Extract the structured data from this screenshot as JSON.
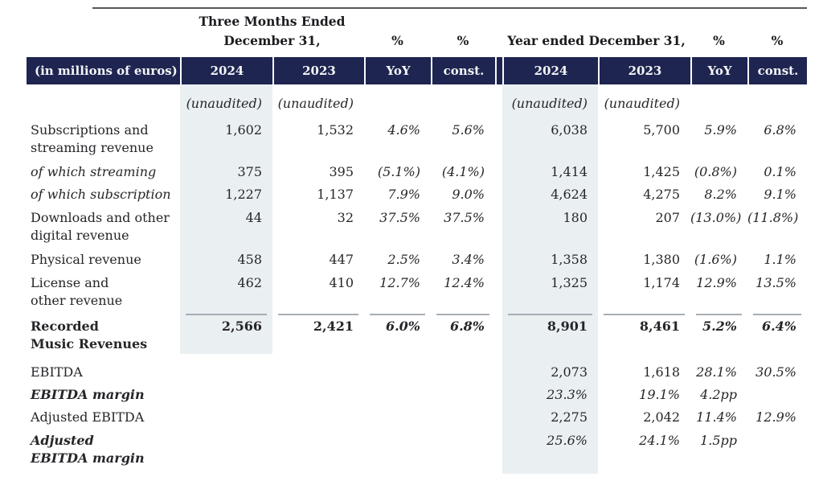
{
  "header": {
    "three_months_line1": "Three Months Ended",
    "three_months_line2": "December 31,",
    "year_ended": "Year ended December 31,",
    "pct_symbol": "%"
  },
  "unit_label": "(in millions of euros)",
  "columns": [
    "2024",
    "2023",
    "YoY",
    "const.",
    "2024",
    "2023",
    "YoY",
    "const."
  ],
  "colors": {
    "header_bg": "#1e2550",
    "column_shade": "#eaeff2",
    "total_rule": "#a6adb5",
    "top_rule": "#56585e",
    "text": "#26262a"
  },
  "rows": [
    {
      "kind": "unaud",
      "label_lines": [],
      "label_style": "normal",
      "force_italic": true,
      "values": [
        "(unaudited)",
        "(unaudited)",
        "",
        "",
        "(unaudited)",
        "(unaudited)",
        "",
        ""
      ]
    },
    {
      "kind": "two",
      "label_lines": [
        "Subscriptions and",
        "streaming revenue"
      ],
      "label_style": "normal",
      "values": [
        "1,602",
        "1,532",
        "4.6%",
        "5.6%",
        "6,038",
        "5,700",
        "5.9%",
        "6.8%"
      ]
    },
    {
      "kind": "one",
      "label_lines": [
        "of which streaming"
      ],
      "label_style": "italic",
      "values": [
        "375",
        "395",
        "(5.1%)",
        "(4.1%)",
        "1,414",
        "1,425",
        "(0.8%)",
        "0.1%"
      ]
    },
    {
      "kind": "one",
      "label_lines": [
        "of which subscription"
      ],
      "label_style": "italic",
      "values": [
        "1,227",
        "1,137",
        "7.9%",
        "9.0%",
        "4,624",
        "4,275",
        "8.2%",
        "9.1%"
      ]
    },
    {
      "kind": "two",
      "label_lines": [
        "Downloads and other",
        "digital revenue"
      ],
      "label_style": "normal",
      "values": [
        "44",
        "32",
        "37.5%",
        "37.5%",
        "180",
        "207",
        "(13.0%)",
        "(11.8%)"
      ]
    },
    {
      "kind": "one",
      "label_lines": [
        "Physical revenue"
      ],
      "label_style": "normal",
      "values": [
        "458",
        "447",
        "2.5%",
        "3.4%",
        "1,358",
        "1,380",
        "(1.6%)",
        "1.1%"
      ]
    },
    {
      "kind": "two",
      "label_lines": [
        "License and",
        "other revenue"
      ],
      "label_style": "normal",
      "values": [
        "462",
        "410",
        "12.7%",
        "12.4%",
        "1,325",
        "1,174",
        "12.9%",
        "13.5%"
      ]
    },
    {
      "kind": "total",
      "label_lines": [
        "Recorded",
        "Music Revenues"
      ],
      "label_style": "bold",
      "values": [
        "2,566",
        "2,421",
        "6.0%",
        "6.8%",
        "8,901",
        "8,461",
        "5.2%",
        "6.4%"
      ]
    },
    {
      "kind": "one",
      "label_lines": [
        "EBITDA"
      ],
      "label_style": "normal",
      "values": [
        "",
        "",
        "",
        "",
        "2,073",
        "1,618",
        "28.1%",
        "30.5%"
      ]
    },
    {
      "kind": "one",
      "label_lines": [
        "EBITDA margin"
      ],
      "label_style": "bold-italic",
      "values": [
        "",
        "",
        "",
        "",
        "23.3%",
        "19.1%",
        "4.2pp",
        ""
      ]
    },
    {
      "kind": "one",
      "label_lines": [
        "Adjusted EBITDA"
      ],
      "label_style": "normal",
      "values": [
        "",
        "",
        "",
        "",
        "2,275",
        "2,042",
        "11.4%",
        "12.9%"
      ]
    },
    {
      "kind": "two",
      "label_lines": [
        "Adjusted",
        "EBITDA margin"
      ],
      "label_style": "bold-italic",
      "values": [
        "",
        "",
        "",
        "",
        "25.6%",
        "24.1%",
        "1.5pp",
        ""
      ]
    }
  ]
}
